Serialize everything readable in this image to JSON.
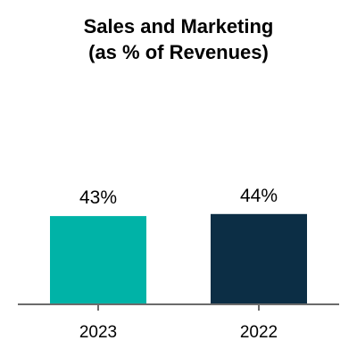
{
  "chart_data": {
    "type": "bar",
    "title_line1": "Sales and Marketing",
    "title_line2": "(as % of Revenues)",
    "categories": [
      "2023",
      "2022"
    ],
    "values": [
      43,
      44
    ],
    "value_labels": [
      "43%",
      "44%"
    ],
    "bar_colors": [
      "#00b3a7",
      "#0c2e45"
    ],
    "axis_color": "#6b6b6b",
    "ylim": [
      0,
      100
    ],
    "grid": false,
    "legend": "none"
  }
}
